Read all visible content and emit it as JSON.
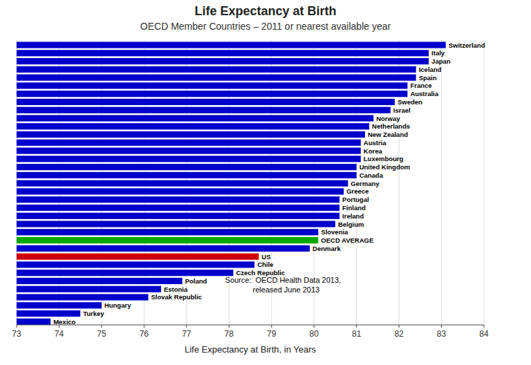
{
  "chart_data": {
    "type": "bar",
    "orientation": "horizontal",
    "title": "Life Expectancy at Birth",
    "subtitle": "OECD Member Countries – 2011 or nearest available year",
    "x_label": "Life Expectancy at Birth, in Years",
    "annotation": "Source:  OECD Health Data 2013,\n   released June 2013",
    "categories": [
      "Switzerland",
      "Italy",
      "Japan",
      "Iceland",
      "Spain",
      "France",
      "Australia",
      "Sweden",
      "Israel",
      "Norway",
      "Netherlands",
      "New Zealand",
      "Austria",
      "Korea",
      "Luxembourg",
      "United Kingdom",
      "Canada",
      "Germany",
      "Greece",
      "Portugal",
      "Finland",
      "Ireland",
      "Belgium",
      "Slovenia",
      "OECD AVERAGE",
      "Denmark",
      "US",
      "Chile",
      "Czech Republic",
      "Poland",
      "Estonia",
      "Slovak Republic",
      "Hungary",
      "Turkey",
      "Mexico"
    ],
    "values": [
      83.1,
      82.7,
      82.7,
      82.4,
      82.4,
      82.2,
      82.2,
      81.9,
      81.8,
      81.4,
      81.3,
      81.2,
      81.1,
      81.1,
      81.1,
      81.0,
      81.0,
      80.8,
      80.7,
      80.6,
      80.6,
      80.6,
      80.5,
      80.1,
      80.1,
      79.9,
      78.7,
      78.6,
      78.1,
      76.9,
      76.4,
      76.1,
      75.0,
      74.5,
      73.8
    ],
    "colors": [
      "#0000cc",
      "#0000cc",
      "#0000cc",
      "#0000cc",
      "#0000cc",
      "#0000cc",
      "#0000cc",
      "#0000cc",
      "#0000cc",
      "#0000cc",
      "#0000cc",
      "#0000cc",
      "#0000cc",
      "#0000cc",
      "#0000cc",
      "#0000cc",
      "#0000cc",
      "#0000cc",
      "#0000cc",
      "#0000cc",
      "#0000cc",
      "#0000cc",
      "#0000cc",
      "#0000cc",
      "#00aa00",
      "#0000cc",
      "#cc0000",
      "#0000cc",
      "#0000cc",
      "#0000cc",
      "#0000cc",
      "#0000cc",
      "#0000cc",
      "#0000cc",
      "#0000cc"
    ],
    "xlim": [
      73,
      84
    ],
    "xticks": [
      73,
      74,
      75,
      76,
      77,
      78,
      79,
      80,
      81,
      82,
      83,
      84
    ],
    "grid": true
  }
}
